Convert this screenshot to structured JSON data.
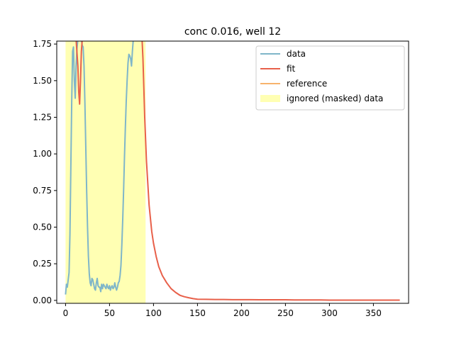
{
  "chart_data": {
    "type": "line",
    "title": "conc 0.016, well 12",
    "xlabel": "",
    "ylabel": "",
    "xlim": [
      -10,
      390
    ],
    "ylim": [
      -0.02,
      1.77
    ],
    "xticks": [
      0,
      50,
      100,
      150,
      200,
      250,
      300,
      350
    ],
    "yticks": [
      0.0,
      0.25,
      0.5,
      0.75,
      1.0,
      1.25,
      1.5,
      1.75
    ],
    "ytick_labels": [
      "0.00",
      "0.25",
      "0.50",
      "0.75",
      "1.00",
      "1.25",
      "1.50",
      "1.75"
    ],
    "grid": false,
    "legend_position": "top-right",
    "masked_region": {
      "x_start": 0,
      "x_end": 91,
      "color": "#ffff99",
      "label": "ignored (masked) data"
    },
    "series": [
      {
        "name": "data",
        "color": "#7fb6c9",
        "x": [
          0,
          1,
          2,
          3,
          4,
          5,
          6,
          7,
          8,
          9,
          10,
          11,
          12,
          13,
          14,
          15,
          16,
          17,
          18,
          19,
          20,
          21,
          22,
          23,
          24,
          25,
          26,
          27,
          28,
          29,
          30,
          31,
          32,
          33,
          34,
          35,
          36,
          37,
          38,
          39,
          40,
          41,
          42,
          43,
          44,
          45,
          46,
          47,
          48,
          49,
          50,
          51,
          52,
          53,
          54,
          55,
          56,
          57,
          58,
          59,
          60,
          61,
          62,
          63,
          64,
          65,
          66,
          67,
          68,
          69,
          70,
          71,
          72,
          73,
          74,
          75,
          76,
          77,
          78,
          79,
          80,
          81,
          82,
          83,
          84,
          85,
          86,
          87
        ],
        "y": [
          0.04,
          0.11,
          0.09,
          0.14,
          0.19,
          0.45,
          0.9,
          1.35,
          1.7,
          1.73,
          1.5,
          1.38,
          1.6,
          1.72,
          1.78,
          1.78,
          1.78,
          1.78,
          1.78,
          1.74,
          1.73,
          1.6,
          1.35,
          1.05,
          0.75,
          0.5,
          0.3,
          0.18,
          0.12,
          0.1,
          0.15,
          0.14,
          0.11,
          0.08,
          0.07,
          0.12,
          0.15,
          0.1,
          0.09,
          0.09,
          0.06,
          0.11,
          0.08,
          0.11,
          0.1,
          0.09,
          0.08,
          0.11,
          0.09,
          0.08,
          0.1,
          0.07,
          0.09,
          0.1,
          0.08,
          0.09,
          0.12,
          0.09,
          0.07,
          0.09,
          0.12,
          0.13,
          0.17,
          0.24,
          0.38,
          0.55,
          0.75,
          0.98,
          1.18,
          1.36,
          1.5,
          1.62,
          1.68,
          1.67,
          1.65,
          1.6,
          1.7,
          1.78,
          1.78,
          1.78,
          1.78,
          1.78,
          1.78,
          1.78,
          1.78,
          1.78,
          1.78,
          1.78
        ]
      },
      {
        "name": "fit",
        "color": "#e8604a",
        "x": [
          12,
          14,
          15,
          16,
          17,
          18,
          19,
          20,
          21,
          22,
          23,
          24,
          25,
          85,
          86,
          87,
          88,
          89,
          90,
          92,
          95,
          98,
          100,
          103,
          106,
          110,
          115,
          120,
          125,
          130,
          135,
          140,
          145,
          150,
          160,
          170,
          180,
          190,
          200,
          210,
          220,
          230,
          240,
          250,
          260,
          270,
          280,
          290,
          300,
          310,
          320,
          330,
          340,
          350,
          360,
          370,
          380
        ],
        "y": [
          1.78,
          1.6,
          1.42,
          1.34,
          1.5,
          1.7,
          1.78,
          1.78,
          1.78,
          1.78,
          1.78,
          1.78,
          1.78,
          1.78,
          1.78,
          1.78,
          1.65,
          1.45,
          1.25,
          0.95,
          0.65,
          0.47,
          0.39,
          0.3,
          0.23,
          0.17,
          0.12,
          0.08,
          0.055,
          0.035,
          0.025,
          0.018,
          0.012,
          0.008,
          0.007,
          0.006,
          0.006,
          0.005,
          0.005,
          0.005,
          0.004,
          0.004,
          0.004,
          0.004,
          0.003,
          0.003,
          0.003,
          0.003,
          0.002,
          0.002,
          0.002,
          0.002,
          0.002,
          0.002,
          0.002,
          0.002,
          0.002
        ]
      },
      {
        "name": "reference",
        "color": "#f7b36c",
        "x": [],
        "y": []
      }
    ]
  }
}
